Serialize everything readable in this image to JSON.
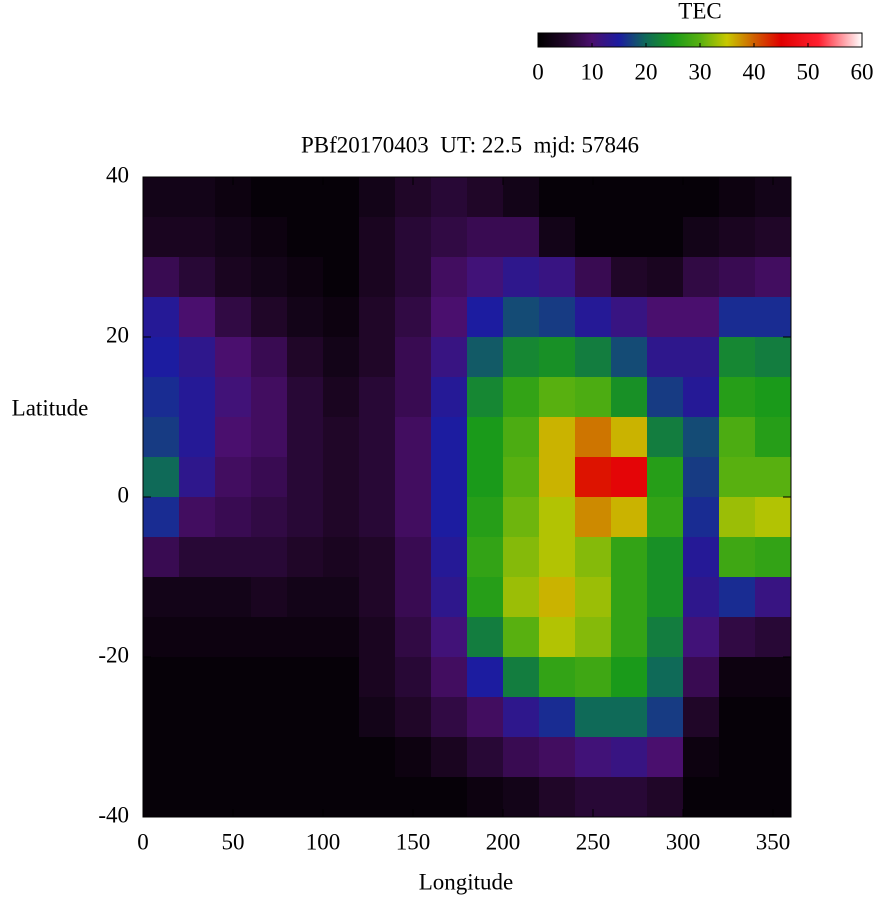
{
  "chart_data": {
    "type": "heatmap",
    "title": "PBf20170403  UT: 22.5  mjd: 57846",
    "xlabel": "Longitude",
    "ylabel": "Latitude",
    "xlim": [
      0,
      360
    ],
    "ylim": [
      -40,
      40
    ],
    "xticks": [
      0,
      50,
      100,
      150,
      200,
      250,
      300,
      350
    ],
    "yticks": [
      -40,
      -20,
      0,
      20,
      40
    ],
    "x": [
      10,
      30,
      50,
      70,
      90,
      110,
      130,
      150,
      170,
      190,
      210,
      230,
      250,
      270,
      290,
      310,
      330,
      350
    ],
    "y": [
      37.5,
      32.5,
      27.5,
      22.5,
      17.5,
      12.5,
      7.5,
      2.5,
      -2.5,
      -7.5,
      -12.5,
      -17.5,
      -22.5,
      -27.5,
      -32.5,
      -37.5
    ],
    "z": [
      [
        3,
        3,
        2,
        1,
        1,
        1,
        3,
        5,
        6,
        5,
        3,
        1,
        1,
        1,
        1,
        1,
        2,
        3
      ],
      [
        4,
        4,
        3,
        2,
        1,
        1,
        4,
        6,
        7,
        8,
        8,
        3,
        1,
        1,
        1,
        3,
        4,
        5
      ],
      [
        8,
        6,
        4,
        3,
        2,
        1,
        4,
        6,
        9,
        11,
        13,
        12,
        8,
        5,
        4,
        7,
        8,
        9
      ],
      [
        14,
        10,
        7,
        5,
        3,
        2,
        5,
        7,
        10,
        15,
        18,
        17,
        14,
        12,
        10,
        10,
        16,
        16
      ],
      [
        15,
        13,
        10,
        8,
        5,
        3,
        5,
        8,
        12,
        19,
        23,
        24,
        22,
        18,
        13,
        13,
        23,
        22
      ],
      [
        16,
        14,
        11,
        9,
        6,
        4,
        6,
        8,
        14,
        23,
        27,
        30,
        29,
        24,
        17,
        14,
        26,
        25
      ],
      [
        17,
        14,
        10,
        9,
        6,
        5,
        6,
        9,
        15,
        25,
        29,
        36,
        39,
        36,
        22,
        18,
        29,
        26
      ],
      [
        20,
        13,
        9,
        8,
        6,
        5,
        6,
        9,
        15,
        25,
        30,
        36,
        44,
        46,
        26,
        17,
        30,
        30
      ],
      [
        16,
        9,
        8,
        7,
        6,
        5,
        6,
        9,
        15,
        26,
        31,
        34,
        38,
        36,
        27,
        16,
        33,
        34
      ],
      [
        8,
        6,
        6,
        6,
        5,
        4,
        5,
        8,
        14,
        27,
        32,
        34,
        32,
        27,
        24,
        14,
        28,
        27
      ],
      [
        3,
        3,
        3,
        4,
        3,
        3,
        5,
        8,
        13,
        26,
        33,
        36,
        33,
        27,
        24,
        13,
        16,
        12
      ],
      [
        2,
        2,
        2,
        2,
        2,
        2,
        4,
        7,
        11,
        22,
        30,
        34,
        32,
        27,
        22,
        11,
        7,
        6
      ],
      [
        1,
        1,
        1,
        1,
        1,
        1,
        4,
        6,
        9,
        15,
        22,
        27,
        28,
        25,
        20,
        8,
        2,
        2
      ],
      [
        1,
        1,
        1,
        1,
        1,
        1,
        3,
        5,
        7,
        9,
        13,
        16,
        20,
        20,
        17,
        5,
        1,
        1
      ],
      [
        1,
        1,
        1,
        1,
        1,
        1,
        1,
        2,
        4,
        6,
        8,
        9,
        11,
        12,
        10,
        2,
        1,
        1
      ],
      [
        1,
        1,
        1,
        1,
        1,
        1,
        1,
        1,
        1,
        2,
        3,
        5,
        6,
        6,
        5,
        1,
        1,
        1
      ]
    ],
    "colorbar": {
      "title": "TEC",
      "lim": [
        0,
        60
      ],
      "ticks": [
        0,
        10,
        20,
        30,
        40,
        50,
        60
      ],
      "colorscale": [
        [
          0,
          "#000000"
        ],
        [
          5,
          "#200628"
        ],
        [
          10,
          "#4a0f6e"
        ],
        [
          15,
          "#1c1ca0"
        ],
        [
          20,
          "#0f6a58"
        ],
        [
          25,
          "#1a9a1a"
        ],
        [
          30,
          "#58b010"
        ],
        [
          35,
          "#c8c800"
        ],
        [
          40,
          "#d06000"
        ],
        [
          45,
          "#e00000"
        ],
        [
          52,
          "#ff2030"
        ],
        [
          60,
          "#ffffff"
        ]
      ]
    }
  }
}
